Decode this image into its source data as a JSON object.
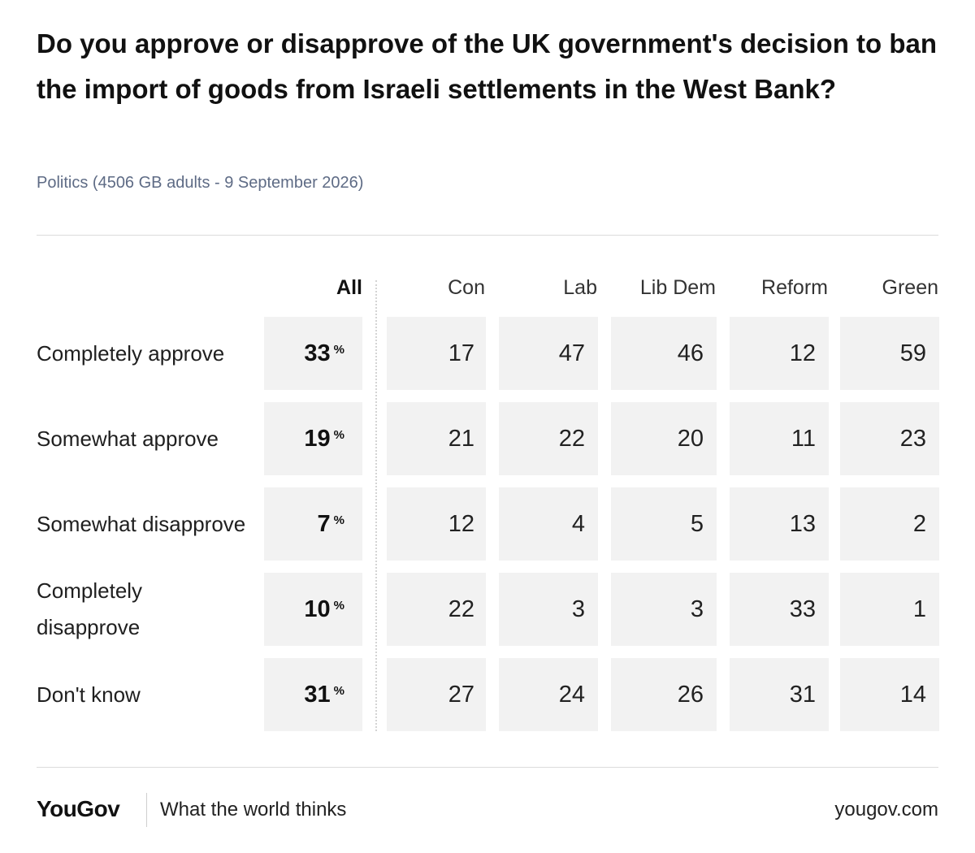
{
  "chart_data": {
    "type": "table",
    "title": "Do you approve or disapprove of the UK government's decision to ban the import of goods from Israeli settlements in the West Bank?",
    "subtitle": "Politics (4506 GB adults - 9 September 2026)",
    "columns": [
      "All",
      "Con",
      "Lab",
      "Lib Dem",
      "Reform",
      "Green"
    ],
    "rows": [
      "Completely approve",
      "Somewhat approve",
      "Somewhat disapprove",
      "Completely disapprove",
      "Don't know"
    ],
    "values": [
      [
        33,
        17,
        47,
        46,
        12,
        59
      ],
      [
        19,
        21,
        22,
        20,
        11,
        23
      ],
      [
        7,
        12,
        4,
        5,
        13,
        2
      ],
      [
        10,
        22,
        3,
        3,
        33,
        1
      ],
      [
        31,
        27,
        24,
        26,
        31,
        14
      ]
    ],
    "unit_symbol": "%"
  },
  "footer": {
    "brand": "YouGov",
    "tagline": "What the world thinks",
    "site": "yougov.com"
  }
}
